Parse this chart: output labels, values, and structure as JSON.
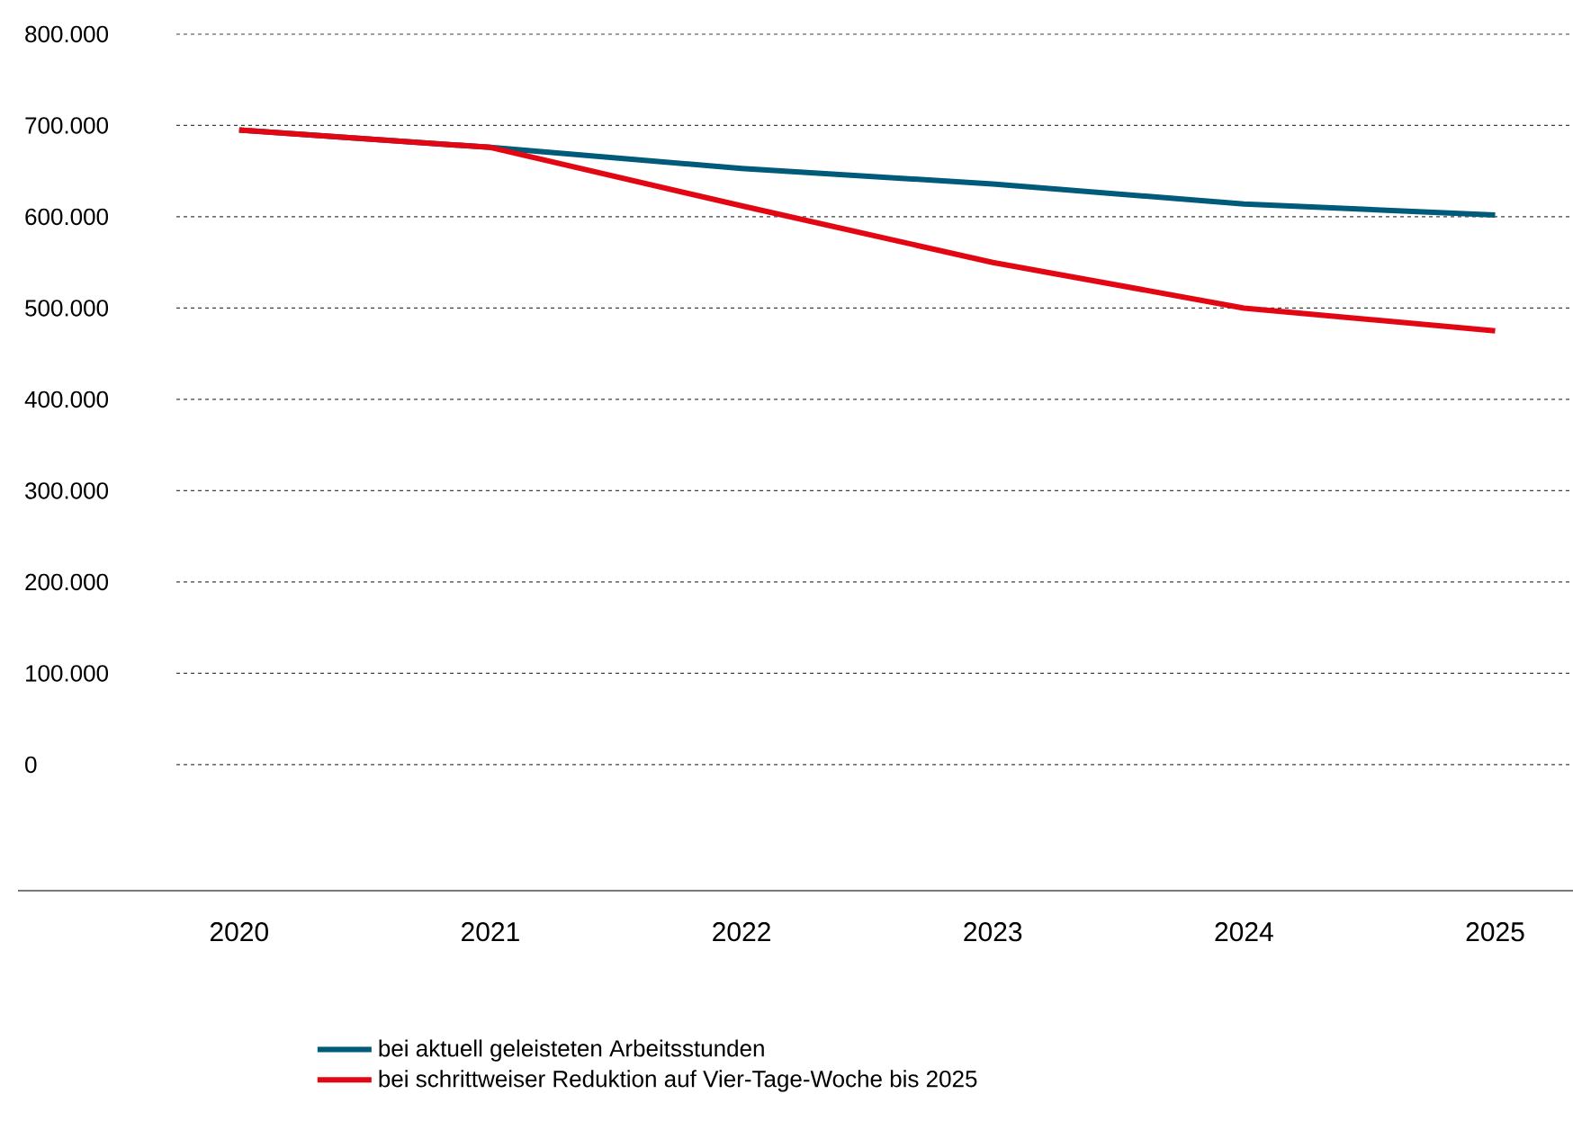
{
  "chart_data": {
    "type": "line",
    "categories": [
      "2020",
      "2021",
      "2022",
      "2023",
      "2024",
      "2025"
    ],
    "series": [
      {
        "name": "bei aktuell geleisteten Arbeitsstunden",
        "color": "#005a7a",
        "values": [
          695000,
          676000,
          653000,
          636000,
          614000,
          602000
        ]
      },
      {
        "name": "bei schrittweiser Reduktion auf Vier-Tage-Woche bis 2025",
        "color": "#e30613",
        "values": [
          695000,
          676000,
          612000,
          550000,
          500000,
          475000
        ]
      }
    ],
    "ylim": [
      -138000,
      800000
    ],
    "yticks": [
      {
        "value": 0,
        "label": "0"
      },
      {
        "value": 100000,
        "label": "100.000"
      },
      {
        "value": 200000,
        "label": "200.000"
      },
      {
        "value": 300000,
        "label": "300.000"
      },
      {
        "value": 400000,
        "label": "400.000"
      },
      {
        "value": 500000,
        "label": "500.000"
      },
      {
        "value": 600000,
        "label": "600.000"
      },
      {
        "value": 700000,
        "label": "700.000"
      },
      {
        "value": 800000,
        "label": "800.000"
      }
    ],
    "grid": "y",
    "legend": "bottom"
  }
}
